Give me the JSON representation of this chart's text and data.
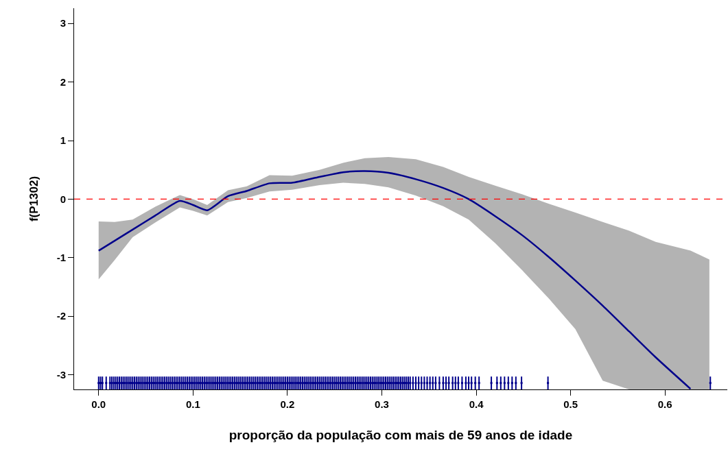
{
  "chart_data": {
    "type": "line",
    "xlabel": "proporção da população com mais de 59 anos de idade",
    "ylabel": "f(P1302)",
    "xlim": [
      -0.026,
      0.666
    ],
    "ylim": [
      -3.25,
      3.26
    ],
    "xticks": [
      {
        "value": 0,
        "label": "0.0"
      },
      0.1,
      0.2,
      0.3,
      0.4,
      0.5,
      0.6
    ],
    "yticks": [
      -3,
      -2,
      -1,
      0,
      1,
      2,
      3
    ],
    "line_style": "solid",
    "ref_lines": [
      {
        "axis": "y",
        "value": 0,
        "color": "#ff0000",
        "line_style": "dashed"
      }
    ],
    "series": [
      {
        "color": "#00008b",
        "x": [
          0,
          0.017,
          0.036,
          0.06,
          0.086,
          0.1,
          0.115,
          0.137,
          0.157,
          0.181,
          0.205,
          0.234,
          0.259,
          0.282,
          0.307,
          0.336,
          0.365,
          0.392,
          0.42,
          0.449,
          0.477,
          0.505,
          0.534,
          0.562,
          0.59,
          0.627,
          0.647
        ],
        "values": [
          -0.88,
          -0.71,
          -0.52,
          -0.28,
          -0.03,
          -0.1,
          -0.19,
          0.05,
          0.14,
          0.27,
          0.28,
          0.38,
          0.46,
          0.48,
          0.45,
          0.34,
          0.19,
          0.0,
          -0.29,
          -0.62,
          -0.99,
          -1.39,
          -1.82,
          -2.26,
          -2.7,
          -3.24,
          null
        ],
        "lower": [
          -1.37,
          -1.04,
          -0.65,
          -0.4,
          -0.14,
          -0.2,
          -0.28,
          -0.05,
          0.02,
          0.13,
          0.16,
          0.24,
          0.28,
          0.26,
          0.2,
          0.06,
          -0.12,
          -0.35,
          -0.75,
          -1.22,
          -1.7,
          -2.22,
          -3.1,
          -3.25,
          -3.25,
          -3.25,
          -3.25
        ],
        "upper": [
          -0.38,
          -0.39,
          -0.35,
          -0.13,
          0.07,
          0.0,
          -0.1,
          0.15,
          0.22,
          0.41,
          0.4,
          0.5,
          0.62,
          0.7,
          0.72,
          0.68,
          0.55,
          0.38,
          0.23,
          0.08,
          -0.08,
          -0.23,
          -0.39,
          -0.54,
          -0.73,
          -0.88,
          -1.03
        ]
      },
      {
        "type": "scatter",
        "color": "#00008b",
        "marker": "square",
        "errors": [
          0.11,
          0.11,
          0.11,
          0.11,
          0.11,
          0.11,
          0.11,
          0.11,
          0.11,
          0.11,
          0.11,
          0.11,
          0.11,
          0.11,
          0.11,
          0.11,
          0.11,
          0.11,
          0.11,
          0.11,
          0.11,
          0.11,
          0.11,
          0.11,
          0.11,
          0.11,
          0.11,
          0.11,
          0.11,
          0.11,
          0.11,
          0.11,
          0.11,
          0.11,
          0.11,
          0.11,
          0.11,
          0.11,
          0.11,
          0.11,
          0.11,
          0.11,
          0.11,
          0.11,
          0.11,
          0.11,
          0.11,
          0.11,
          0.11,
          0.11,
          0.11,
          0.11,
          0.11,
          0.11,
          0.11,
          0.11,
          0.11,
          0.11,
          0.11,
          0.11,
          0.11,
          0.11,
          0.11,
          0.11,
          0.11,
          0.11,
          0.11,
          0.11,
          0.11,
          0.11,
          0.11,
          0.11,
          0.11,
          0.11,
          0.11,
          0.11,
          0.11,
          0.11,
          0.11,
          0.11,
          0.11,
          0.11,
          0.11,
          0.11,
          0.11,
          0.11,
          0.11,
          0.11,
          0.11,
          0.11,
          0.11,
          0.11,
          0.11,
          0.11,
          0.11,
          0.11,
          0.11,
          0.11,
          0.11,
          0.11,
          0.11,
          0.11,
          0.11,
          0.11,
          0.11,
          0.11,
          0.11,
          0.11,
          0.11,
          0.11,
          0.11,
          0.11,
          0.11,
          0.11,
          0.11,
          0.11,
          0.11,
          0.11,
          0.11,
          0.11,
          0.11,
          0.11,
          0.11,
          0.11,
          0.11,
          0.11,
          0.11,
          0.11,
          0.11,
          0.11,
          0.11,
          0.11,
          0.11,
          0.11,
          0.11,
          0.11,
          0.11,
          0.11,
          0.11,
          0.11,
          0.11,
          0.11,
          0.11,
          0.11,
          0.11,
          0.11,
          0.11,
          0.11,
          0.11,
          0.11,
          0.11,
          0.11,
          0.11,
          0.11,
          0.11,
          0.11,
          0.11,
          0.11,
          0.11,
          0.11,
          0.11,
          0.11,
          0.11,
          0.11,
          0.11,
          0.11,
          0.11,
          0.11,
          0.11,
          0.11,
          0.11,
          0.11,
          0.11,
          0.11,
          0.11,
          0.11,
          0.11,
          0.11,
          0.11,
          0.11,
          0.11,
          0.11,
          0.11,
          0.11,
          0.11,
          0.11,
          0.11,
          0.11,
          0.11,
          0.11,
          0.11,
          0.11,
          0.11,
          0.11,
          0.11,
          0.11
        ],
        "x": [
          0,
          0.002,
          0.004,
          0.008,
          0.012,
          0.014,
          0.016,
          0.018,
          0.02,
          0.022,
          0.024,
          0.026,
          0.028,
          0.03,
          0.032,
          0.034,
          0.036,
          0.038,
          0.04,
          0.042,
          0.044,
          0.046,
          0.048,
          0.05,
          0.052,
          0.054,
          0.056,
          0.058,
          0.06,
          0.062,
          0.064,
          0.066,
          0.068,
          0.07,
          0.072,
          0.074,
          0.076,
          0.078,
          0.08,
          0.082,
          0.084,
          0.086,
          0.088,
          0.09,
          0.092,
          0.094,
          0.096,
          0.098,
          0.1,
          0.102,
          0.104,
          0.106,
          0.108,
          0.11,
          0.112,
          0.114,
          0.116,
          0.118,
          0.12,
          0.122,
          0.124,
          0.126,
          0.128,
          0.13,
          0.132,
          0.134,
          0.136,
          0.138,
          0.14,
          0.142,
          0.144,
          0.146,
          0.148,
          0.15,
          0.152,
          0.154,
          0.156,
          0.158,
          0.16,
          0.162,
          0.164,
          0.166,
          0.168,
          0.17,
          0.172,
          0.174,
          0.176,
          0.178,
          0.18,
          0.182,
          0.184,
          0.186,
          0.188,
          0.19,
          0.192,
          0.194,
          0.196,
          0.198,
          0.2,
          0.202,
          0.204,
          0.206,
          0.208,
          0.21,
          0.212,
          0.214,
          0.216,
          0.218,
          0.22,
          0.222,
          0.224,
          0.226,
          0.228,
          0.23,
          0.232,
          0.234,
          0.236,
          0.238,
          0.24,
          0.242,
          0.244,
          0.246,
          0.248,
          0.25,
          0.252,
          0.254,
          0.256,
          0.258,
          0.26,
          0.262,
          0.264,
          0.266,
          0.268,
          0.27,
          0.272,
          0.274,
          0.276,
          0.278,
          0.28,
          0.282,
          0.284,
          0.286,
          0.288,
          0.29,
          0.292,
          0.294,
          0.296,
          0.298,
          0.3,
          0.302,
          0.304,
          0.306,
          0.308,
          0.31,
          0.312,
          0.314,
          0.316,
          0.318,
          0.32,
          0.322,
          0.324,
          0.326,
          0.328,
          0.33,
          0.333,
          0.336,
          0.339,
          0.342,
          0.345,
          0.348,
          0.351,
          0.354,
          0.357,
          0.361,
          0.365,
          0.368,
          0.371,
          0.375,
          0.378,
          0.381,
          0.385,
          0.389,
          0.392,
          0.395,
          0.399,
          0.403,
          0.416,
          0.422,
          0.426,
          0.43,
          0.434,
          0.438,
          0.442,
          0.448,
          0.476,
          0.648
        ],
        "values": [
          -3.14,
          -3.14,
          -3.14,
          -3.14,
          -3.14,
          -3.14,
          -3.14,
          -3.14,
          -3.14,
          -3.14,
          -3.14,
          -3.14,
          -3.14,
          -3.14,
          -3.14,
          -3.14,
          -3.14,
          -3.14,
          -3.14,
          -3.14,
          -3.14,
          -3.14,
          -3.14,
          -3.14,
          -3.14,
          -3.14,
          -3.14,
          -3.14,
          -3.14,
          -3.14,
          -3.14,
          -3.14,
          -3.14,
          -3.14,
          -3.14,
          -3.14,
          -3.14,
          -3.14,
          -3.14,
          -3.14,
          -3.14,
          -3.14,
          -3.14,
          -3.14,
          -3.14,
          -3.14,
          -3.14,
          -3.14,
          -3.14,
          -3.14,
          -3.14,
          -3.14,
          -3.14,
          -3.14,
          -3.14,
          -3.14,
          -3.14,
          -3.14,
          -3.14,
          -3.14,
          -3.14,
          -3.14,
          -3.14,
          -3.14,
          -3.14,
          -3.14,
          -3.14,
          -3.14,
          -3.14,
          -3.14,
          -3.14,
          -3.14,
          -3.14,
          -3.14,
          -3.14,
          -3.14,
          -3.14,
          -3.14,
          -3.14,
          -3.14,
          -3.14,
          -3.14,
          -3.14,
          -3.14,
          -3.14,
          -3.14,
          -3.14,
          -3.14,
          -3.14,
          -3.14,
          -3.14,
          -3.14,
          -3.14,
          -3.14,
          -3.14,
          -3.14,
          -3.14,
          -3.14,
          -3.14,
          -3.14,
          -3.14,
          -3.14,
          -3.14,
          -3.14,
          -3.14,
          -3.14,
          -3.14,
          -3.14,
          -3.14,
          -3.14,
          -3.14,
          -3.14,
          -3.14,
          -3.14,
          -3.14,
          -3.14,
          -3.14,
          -3.14,
          -3.14,
          -3.14,
          -3.14,
          -3.14,
          -3.14,
          -3.14,
          -3.14,
          -3.14,
          -3.14,
          -3.14,
          -3.14,
          -3.14,
          -3.14,
          -3.14,
          -3.14,
          -3.14,
          -3.14,
          -3.14,
          -3.14,
          -3.14,
          -3.14,
          -3.14,
          -3.14,
          -3.14,
          -3.14,
          -3.14,
          -3.14,
          -3.14,
          -3.14,
          -3.14,
          -3.14,
          -3.14,
          -3.14,
          -3.14,
          -3.14,
          -3.14,
          -3.14,
          -3.14,
          -3.14,
          -3.14,
          -3.14,
          -3.14,
          -3.14,
          -3.14,
          -3.14,
          -3.14,
          -3.14,
          -3.14,
          -3.14,
          -3.14,
          -3.14,
          -3.14,
          -3.14,
          -3.14,
          -3.14,
          -3.14,
          -3.14,
          -3.14,
          -3.14,
          -3.14,
          -3.14,
          -3.14,
          -3.14,
          -3.14,
          -3.14,
          -3.14,
          -3.14,
          -3.14,
          -3.14,
          -3.14,
          -3.14,
          -3.14,
          -3.14,
          -3.14,
          -3.14,
          -3.14,
          -3.14,
          -3.14
        ]
      }
    ]
  }
}
